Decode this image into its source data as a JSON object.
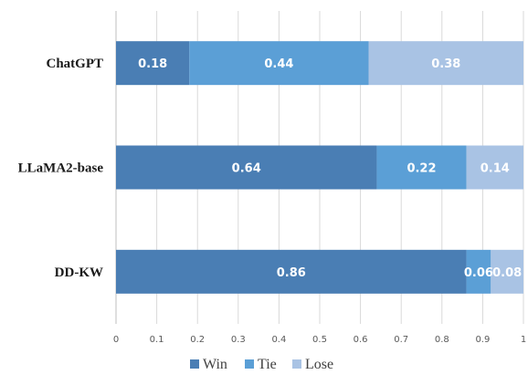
{
  "colors": {
    "Win": "#4a7eb4",
    "Tie": "#5b9fd6",
    "Lose": "#a9c3e4",
    "grid": "#d9d9d9",
    "axis": "#bfbfbf"
  },
  "chart_data": {
    "type": "bar",
    "orientation": "horizontal",
    "stacked": true,
    "title": "",
    "xlabel": "",
    "ylabel": "",
    "categories": [
      "ChatGPT",
      "LLaMA2-base",
      "DD-KW"
    ],
    "series": [
      {
        "name": "Win",
        "values": [
          0.18,
          0.64,
          0.86
        ],
        "labels": [
          "0.18",
          "0.64",
          "0.86"
        ]
      },
      {
        "name": "Tie",
        "values": [
          0.44,
          0.22,
          0.06
        ],
        "labels": [
          "0.44",
          "0.22",
          "0.06"
        ]
      },
      {
        "name": "Lose",
        "values": [
          0.38,
          0.14,
          0.08
        ],
        "labels": [
          "0.38",
          "0.14",
          "0.08"
        ]
      }
    ],
    "xlim": [
      0,
      1
    ],
    "xticks": [
      "0",
      "0.1",
      "0.2",
      "0.3",
      "0.4",
      "0.5",
      "0.6",
      "0.7",
      "0.8",
      "0.9",
      "1"
    ],
    "grid": true,
    "legend_position": "bottom"
  }
}
